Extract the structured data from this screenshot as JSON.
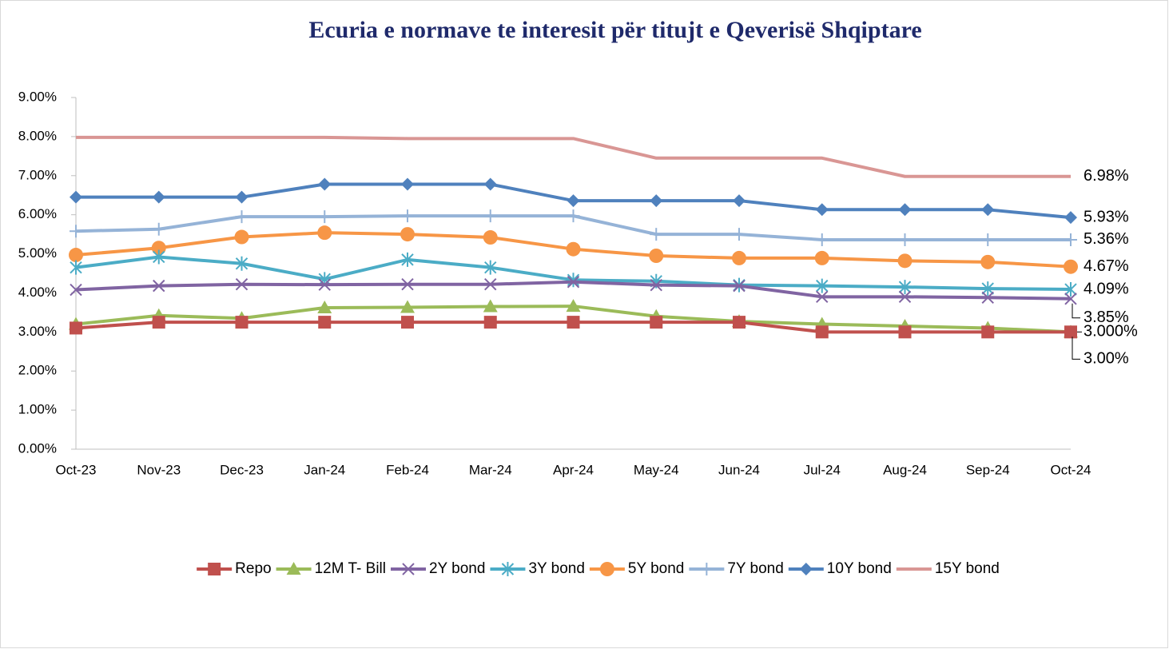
{
  "chart_data": {
    "type": "line",
    "title": "Ecuria e normave te interesit për titujt e Qeverisë Shqiptare",
    "categories": [
      "Oct-23",
      "Nov-23",
      "Dec-23",
      "Jan-24",
      "Feb-24",
      "Mar-24",
      "Apr-24",
      "May-24",
      "Jun-24",
      "Jul-24",
      "Aug-24",
      "Sep-24",
      "Oct-24"
    ],
    "ylim": [
      0,
      9
    ],
    "yticks": [
      {
        "value": 0,
        "label": "0.00%"
      },
      {
        "value": 1,
        "label": "1.00%"
      },
      {
        "value": 2,
        "label": "2.00%"
      },
      {
        "value": 3,
        "label": "3.00%"
      },
      {
        "value": 4,
        "label": "4.00%"
      },
      {
        "value": 5,
        "label": "5.00%"
      },
      {
        "value": 6,
        "label": "6.00%"
      },
      {
        "value": 7,
        "label": "7.00%"
      },
      {
        "value": 8,
        "label": "8.00%"
      },
      {
        "value": 9,
        "label": "9.00%"
      }
    ],
    "legend": "bottom",
    "series": [
      {
        "name": "Repo",
        "color": "#c0504d",
        "marker": "square",
        "values": [
          3.1,
          3.25,
          3.25,
          3.25,
          3.25,
          3.25,
          3.25,
          3.25,
          3.25,
          3.0,
          3.0,
          3.0,
          3.0
        ],
        "value_labels": [
          null,
          null,
          null,
          null,
          null,
          null,
          null,
          null,
          null,
          null,
          null,
          null,
          "3.000%"
        ]
      },
      {
        "name": "12M T- Bill",
        "color": "#9bbb59",
        "marker": "triangle",
        "values": [
          3.2,
          3.42,
          3.35,
          3.62,
          3.63,
          3.65,
          3.66,
          3.4,
          3.27,
          3.2,
          3.15,
          3.1,
          3.0
        ],
        "value_labels": [
          null,
          null,
          null,
          null,
          null,
          null,
          null,
          null,
          null,
          null,
          null,
          null,
          "3.00%"
        ]
      },
      {
        "name": "2Y bond",
        "color": "#8064a2",
        "marker": "x",
        "values": [
          4.08,
          4.18,
          4.22,
          4.21,
          4.22,
          4.22,
          4.28,
          4.2,
          4.18,
          3.9,
          3.9,
          3.88,
          3.85
        ],
        "value_labels": [
          null,
          null,
          null,
          null,
          null,
          null,
          null,
          null,
          null,
          null,
          null,
          null,
          "3.85%"
        ]
      },
      {
        "name": "3Y bond",
        "color": "#4bacc6",
        "marker": "star",
        "values": [
          4.65,
          4.92,
          4.75,
          4.35,
          4.85,
          4.65,
          4.33,
          4.3,
          4.2,
          4.18,
          4.15,
          4.11,
          4.09
        ],
        "value_labels": [
          null,
          null,
          null,
          null,
          null,
          null,
          null,
          null,
          null,
          null,
          null,
          null,
          "4.09%"
        ]
      },
      {
        "name": "5Y bond",
        "color": "#f79646",
        "marker": "circle",
        "values": [
          4.97,
          5.15,
          5.43,
          5.54,
          5.5,
          5.42,
          5.12,
          4.95,
          4.89,
          4.89,
          4.82,
          4.79,
          4.67
        ],
        "value_labels": [
          null,
          null,
          null,
          null,
          null,
          null,
          null,
          null,
          null,
          null,
          null,
          null,
          "4.67%"
        ]
      },
      {
        "name": "7Y bond",
        "color": "#95b3d7",
        "marker": "plus",
        "values": [
          5.58,
          5.63,
          5.95,
          5.95,
          5.97,
          5.97,
          5.97,
          5.5,
          5.5,
          5.36,
          5.36,
          5.36,
          5.36
        ],
        "value_labels": [
          null,
          null,
          null,
          null,
          null,
          null,
          null,
          null,
          null,
          null,
          null,
          null,
          "5.36%"
        ]
      },
      {
        "name": "10Y bond",
        "color": "#4f81bd",
        "marker": "diamond",
        "values": [
          6.45,
          6.45,
          6.45,
          6.78,
          6.78,
          6.78,
          6.36,
          6.36,
          6.36,
          6.13,
          6.13,
          6.13,
          5.93
        ],
        "value_labels": [
          null,
          null,
          null,
          null,
          null,
          null,
          null,
          null,
          null,
          null,
          null,
          null,
          "5.93%"
        ]
      },
      {
        "name": "15Y bond",
        "color": "#d99694",
        "marker": "none",
        "values": [
          7.98,
          7.98,
          7.98,
          7.98,
          7.95,
          7.95,
          7.95,
          7.45,
          7.45,
          7.45,
          6.98,
          6.98,
          6.98
        ],
        "value_labels": [
          null,
          null,
          null,
          null,
          null,
          null,
          null,
          null,
          null,
          null,
          null,
          null,
          "6.98%"
        ]
      }
    ]
  }
}
